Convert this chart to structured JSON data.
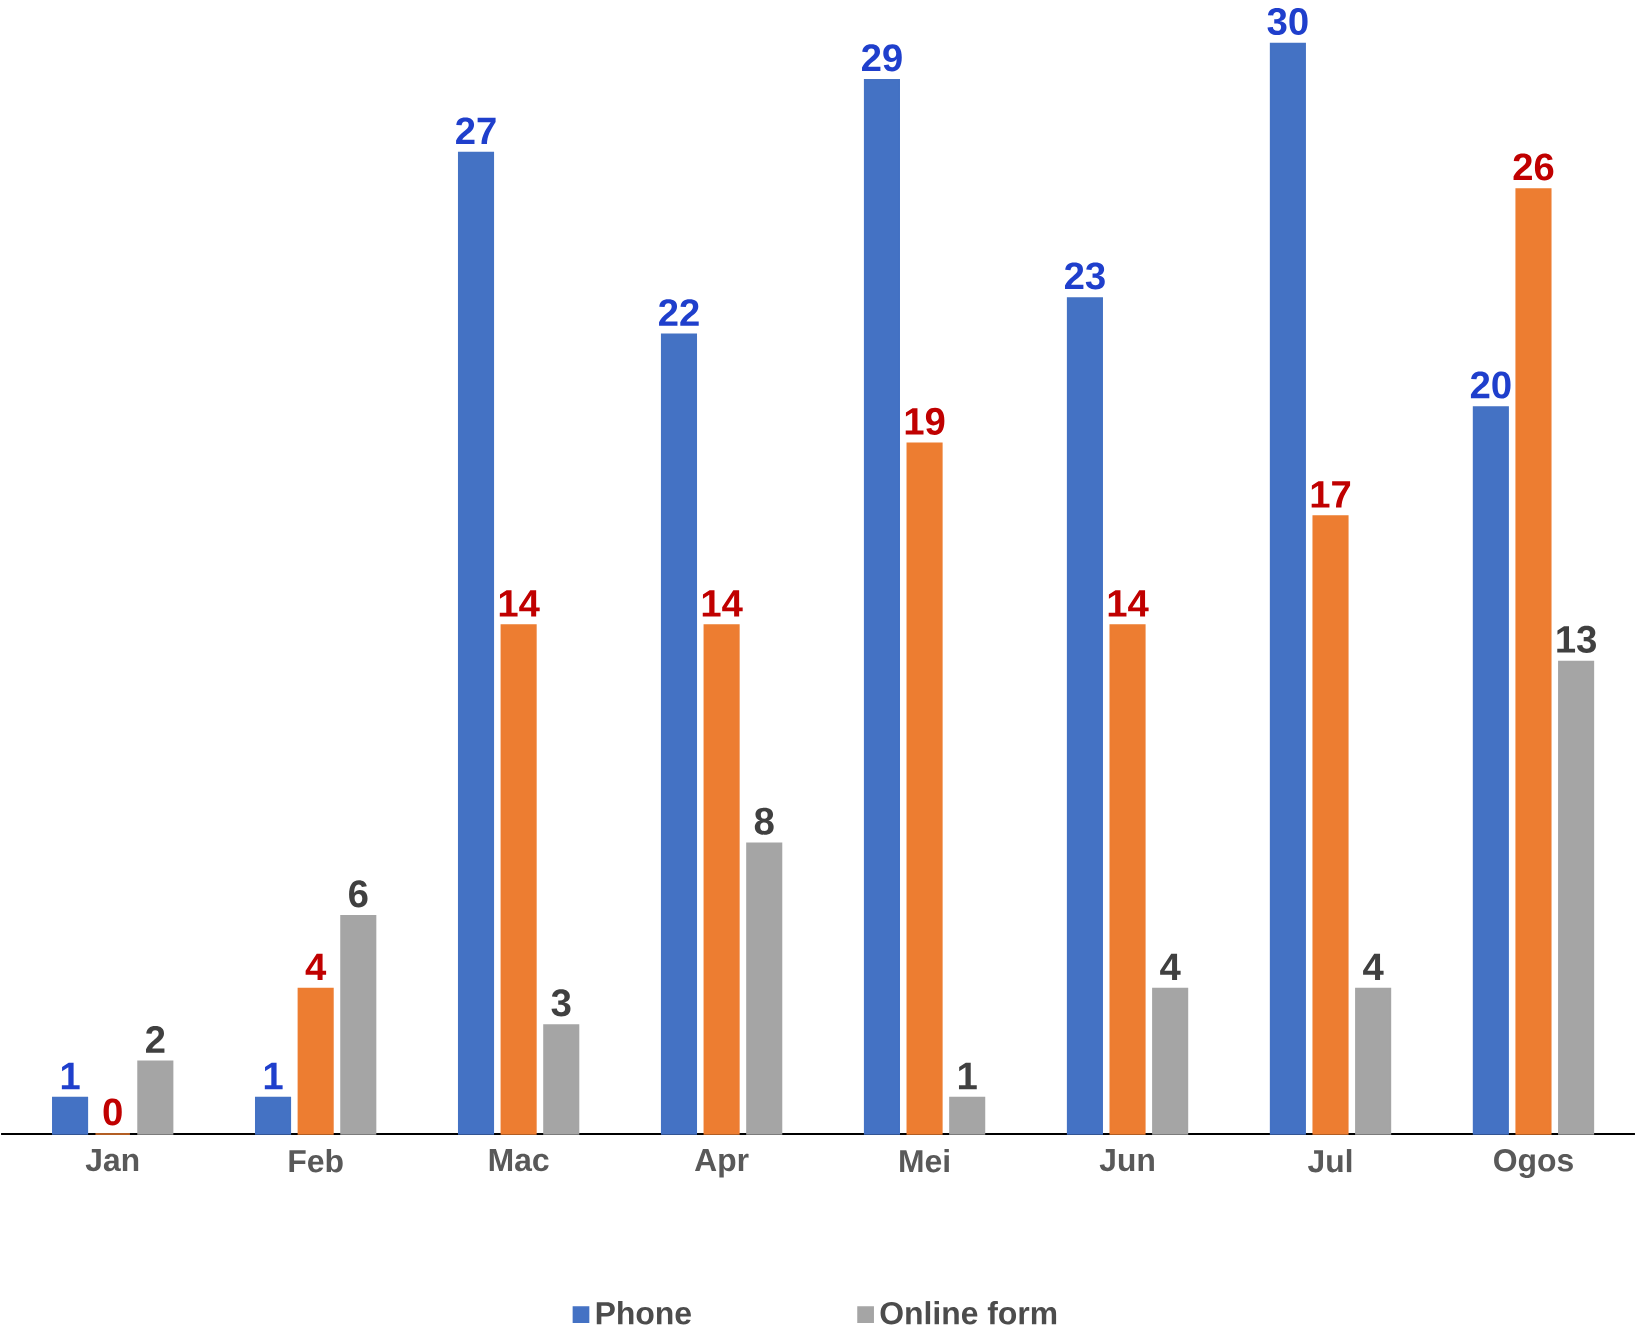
{
  "chart_data": {
    "type": "bar",
    "categories": [
      "Jan",
      "Feb",
      "Mac",
      "Apr",
      "Mei",
      "Jun",
      "Jul",
      "Ogos"
    ],
    "series": [
      {
        "name": "Phone",
        "color": "#4472c4",
        "values": [
          1,
          1,
          27,
          22,
          29,
          23,
          30,
          20
        ]
      },
      {
        "color": "#ed7d31",
        "values": [
          0,
          4,
          14,
          14,
          19,
          14,
          17,
          26
        ]
      },
      {
        "name": "Online form",
        "color": "#a5a5a5",
        "values": [
          2,
          6,
          3,
          8,
          1,
          4,
          4,
          13
        ]
      }
    ],
    "data_labels": true,
    "tick_labels": "x",
    "legend": "bottom"
  }
}
